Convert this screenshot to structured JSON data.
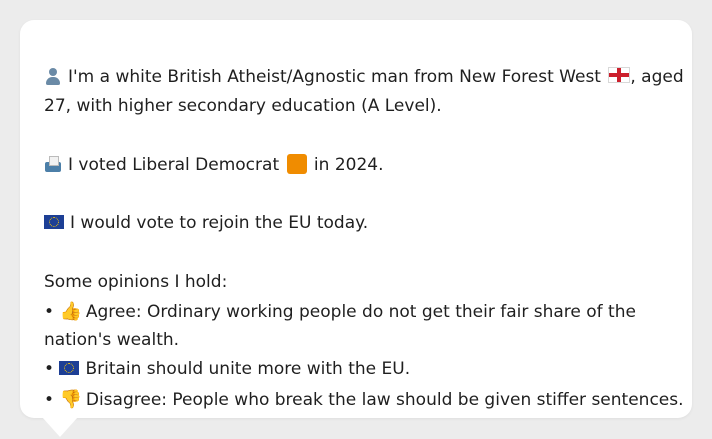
{
  "profile": {
    "line1": "I'm a white British Atheist/Agnostic man from New Forest West",
    "line1_tail": ", aged",
    "line2": "27, with higher secondary education (A Level).",
    "vote_pre": "I voted Liberal Democrat",
    "vote_post": "in 2024.",
    "eu": "I would vote to rejoin the EU today."
  },
  "opinions": {
    "heading": "Some opinions I hold:",
    "bullet": "•",
    "items": [
      {
        "text_line1": "Agree: Ordinary working people do not get their fair share of the",
        "text_line2": "nation's wealth."
      },
      {
        "text_line1": "Britain should unite more with the EU."
      },
      {
        "text_line1": "Disagree: People who break the law should be given stiffer sentences."
      }
    ]
  },
  "colors": {
    "card": "#ffffff",
    "background": "#ececec",
    "text": "#1f1f1f",
    "libdem_orange": "#f08c00",
    "eu_blue": "#1d3f95"
  },
  "icons": {
    "person": "bust-in-silhouette-icon",
    "england_flag": "england-flag-icon",
    "ballot": "ballot-box-icon",
    "orange_square": "orange-square-icon",
    "eu_flag": "eu-flag-icon",
    "thumbs_up": "thumbs-up-icon",
    "thumbs_down": "thumbs-down-icon"
  }
}
